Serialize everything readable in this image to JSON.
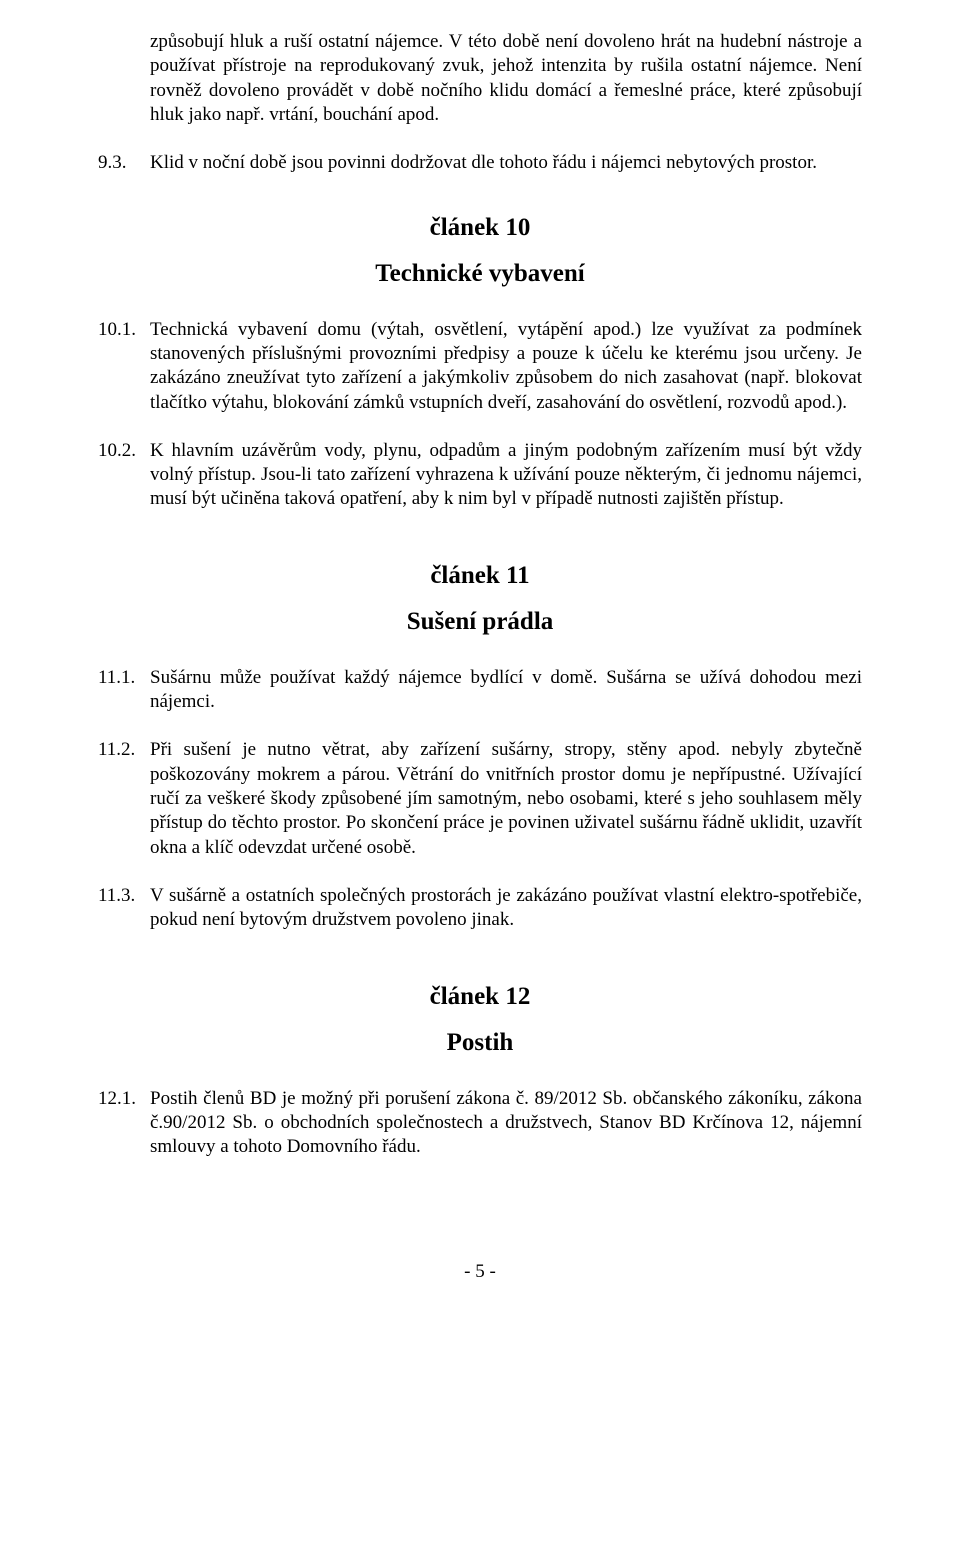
{
  "intro": {
    "p1": "způsobují hluk a ruší ostatní nájemce. V této době není dovoleno hrát na hudební nástroje a používat přístroje na reprodukovaný zvuk, jehož intenzita by rušila ostatní nájemce. Není rovněž dovoleno provádět v době nočního klidu domácí a řemeslné práce, které způsobují hluk jako např. vrtání, bouchání apod."
  },
  "item93": {
    "num": "9.3.",
    "text": "Klid v noční době jsou povinni dodržovat dle tohoto řádu i nájemci nebytových prostor."
  },
  "art10": {
    "title": "článek 10",
    "subtitle": "Technické vybavení"
  },
  "item101": {
    "num": "10.1.",
    "text": "Technická vybavení domu (výtah, osvětlení, vytápění apod.) lze využívat za podmínek stanovených příslušnými provozními předpisy a pouze k účelu ke kterému jsou určeny. Je zakázáno zneužívat tyto zařízení a jakýmkoliv způsobem do nich zasahovat (např. blokovat tlačítko výtahu, blokování zámků vstupních dveří, zasahování do osvětlení, rozvodů apod.)."
  },
  "item102": {
    "num": "10.2.",
    "text": "K hlavním uzávěrům vody, plynu, odpadům a jiným podobným zařízením musí být vždy volný přístup. Jsou-li tato zařízení vyhrazena k užívání pouze některým, či jednomu nájemci, musí být učiněna taková opatření, aby k nim byl v případě nutnosti zajištěn přístup."
  },
  "art11": {
    "title": "článek 11",
    "subtitle": "Sušení prádla"
  },
  "item111": {
    "num": "11.1.",
    "text": "Sušárnu může používat každý nájemce bydlící v domě. Sušárna se užívá dohodou mezi nájemci."
  },
  "item112": {
    "num": "11.2.",
    "text": "Při sušení je nutno větrat, aby zařízení sušárny, stropy, stěny apod. nebyly zbytečně poškozovány mokrem a párou. Větrání do vnitřních prostor domu je nepřípustné. Užívající ručí za veškeré škody způsobené jím samotným, nebo osobami, které s jeho souhlasem měly přístup do těchto prostor. Po skončení práce je povinen uživatel sušárnu řádně uklidit, uzavřít okna a klíč odevzdat určené osobě."
  },
  "item113": {
    "num": "11.3.",
    "text": "V sušárně a ostatních společných prostorách je zakázáno používat vlastní elektro-spotřebiče, pokud není bytovým družstvem povoleno jinak."
  },
  "art12": {
    "title": "článek 12",
    "subtitle": "Postih"
  },
  "item121": {
    "num": "12.1.",
    "text": "Postih členů  BD je možný při  porušení zákona č.  89/2012 Sb. občanského zákoníku, zákona č.90/2012 Sb. o obchodních společnostech a družstvech, Stanov BD Krčínova 12, nájemní smlouvy a tohoto Domovního řádu."
  },
  "footer": {
    "pagenum": "- 5 -"
  }
}
